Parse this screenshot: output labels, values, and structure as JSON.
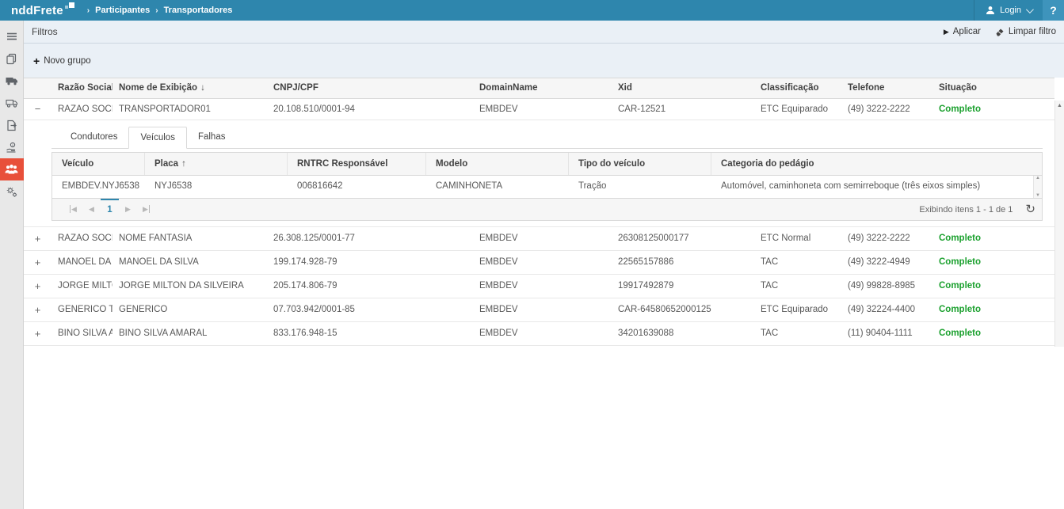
{
  "topbar": {
    "logo_text": "nddFrete",
    "breadcrumb": [
      "Participantes",
      "Transportadores"
    ],
    "login_label": "Login",
    "help_label": "?"
  },
  "glyphs": {
    "breadcrumb_sep": "›",
    "apply_arrow": "▶",
    "plus": "+",
    "collapse": "−",
    "expand": "+",
    "sort_desc": "↓",
    "sort_asc": "↑",
    "pager_first": "◀",
    "pager_prev": "◀",
    "pager_next": "▶",
    "pager_last": "▶",
    "refresh": "↻",
    "scroll_up": "▲",
    "scroll_down": "▼"
  },
  "sidebar": {
    "icons": [
      "menu-icon",
      "copy-documents-icon",
      "truck-icon",
      "delivery-truck-icon",
      "document-export-icon",
      "hand-coin-icon",
      "participants-group-icon",
      "gears-icon"
    ],
    "active_icon": "participants-group-icon",
    "active_color": "#e8503a"
  },
  "filters": {
    "title": "Filtros",
    "apply_label": "Aplicar",
    "clear_label": "Limpar filtro",
    "new_group_label": "Novo grupo"
  },
  "grid": {
    "columns": [
      "Razão Social",
      "Nome de Exibição",
      "CNPJ/CPF",
      "DomainName",
      "Xid",
      "Classificação",
      "Telefone",
      "Situação"
    ],
    "sorted_column": "Nome de Exibição",
    "sort_direction": "desc",
    "status_complete_color": "#1ca12f",
    "rows": [
      {
        "expanded": true,
        "razao_social": "RAZAO SOCIAL S...",
        "nome_exibicao": "TRANSPORTADOR01",
        "cnpj_cpf": "20.108.510/0001-94",
        "domain_name": "EMBDEV",
        "xid": "CAR-12521",
        "classificacao": "ETC Equiparado",
        "telefone": "(49) 3222-2222",
        "situacao": "Completo"
      },
      {
        "expanded": false,
        "razao_social": "RAZAO SOCIAL",
        "nome_exibicao": "NOME FANTASIA",
        "cnpj_cpf": "26.308.125/0001-77",
        "domain_name": "EMBDEV",
        "xid": "26308125000177",
        "classificacao": "ETC Normal",
        "telefone": "(49) 3222-2222",
        "situacao": "Completo"
      },
      {
        "expanded": false,
        "razao_social": "MANOEL DA SILVA",
        "nome_exibicao": "MANOEL DA SILVA",
        "cnpj_cpf": "199.174.928-79",
        "domain_name": "EMBDEV",
        "xid": "22565157886",
        "classificacao": "TAC",
        "telefone": "(49) 3222-4949",
        "situacao": "Completo"
      },
      {
        "expanded": false,
        "razao_social": "JORGE MILTON ...",
        "nome_exibicao": "JORGE MILTON DA SILVEIRA",
        "cnpj_cpf": "205.174.806-79",
        "domain_name": "EMBDEV",
        "xid": "19917492879",
        "classificacao": "TAC",
        "telefone": "(49) 99828-8985",
        "situacao": "Completo"
      },
      {
        "expanded": false,
        "razao_social": "GENERICO TRAN...",
        "nome_exibicao": "GENERICO",
        "cnpj_cpf": "07.703.942/0001-85",
        "domain_name": "EMBDEV",
        "xid": "CAR-64580652000125",
        "classificacao": "ETC Equiparado",
        "telefone": "(49) 32224-4400",
        "situacao": "Completo"
      },
      {
        "expanded": false,
        "razao_social": "BINO SILVA AMA...",
        "nome_exibicao": "BINO SILVA AMARAL",
        "cnpj_cpf": "833.176.948-15",
        "domain_name": "EMBDEV",
        "xid": "34201639088",
        "classificacao": "TAC",
        "telefone": "(11) 90404-1111",
        "situacao": "Completo"
      }
    ]
  },
  "detail": {
    "tabs": [
      "Condutores",
      "Veículos",
      "Falhas"
    ],
    "active_tab": "Veículos",
    "vehicles": {
      "columns": [
        "Veículo",
        "Placa",
        "RNTRC Responsável",
        "Modelo",
        "Tipo do veículo",
        "Categoria do pedágio"
      ],
      "sorted_column": "Placa",
      "sort_direction": "asc",
      "rows": [
        {
          "veiculo": "EMBDEV.NYJ6538",
          "placa": "NYJ6538",
          "rntrc": "006816642",
          "modelo": "CAMINHONETA",
          "tipo": "Tração",
          "categoria": "Automóvel, caminhoneta com semirreboque (três eixos simples)"
        }
      ]
    },
    "pager": {
      "current_page": "1",
      "status": "Exibindo itens 1 - 1 de 1"
    }
  },
  "colors": {
    "topbar_blue": "#2e86ad",
    "sidebar_active_red": "#e8503a",
    "status_green": "#1ca12f",
    "pager_accent_blue": "#2e86ad"
  }
}
